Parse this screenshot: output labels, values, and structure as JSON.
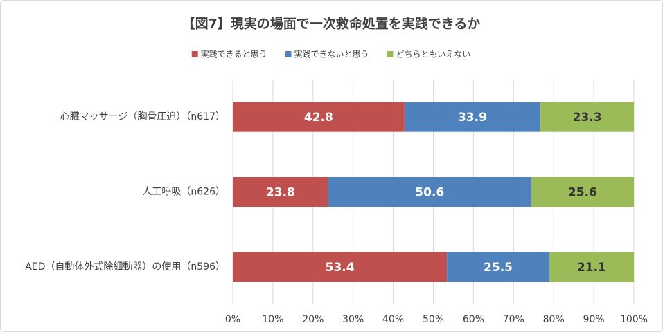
{
  "chart_data": {
    "type": "stacked-bar-horizontal",
    "title": "【図7】現実の場面で一次救命処置を実践できるか",
    "categories": [
      "心臓マッサージ（胸骨圧迫）（n617）",
      "人工呼吸（n626）",
      "AED（自動体外式除細動器）の使用（n596）"
    ],
    "series": [
      {
        "name": "実践できると思う",
        "color": "#c0504d",
        "label_color": "#ffffff",
        "values": [
          42.8,
          23.8,
          53.4
        ]
      },
      {
        "name": "実践できないと思う",
        "color": "#4f81bd",
        "label_color": "#ffffff",
        "values": [
          33.9,
          50.6,
          25.5
        ]
      },
      {
        "name": "どちらともいえない",
        "color": "#9bbb59",
        "label_color": "#333333",
        "values": [
          23.3,
          25.6,
          21.1
        ]
      }
    ],
    "xlim": [
      0,
      100
    ],
    "xticks": [
      {
        "value": 0,
        "label": "0%"
      },
      {
        "value": 10,
        "label": "10%"
      },
      {
        "value": 20,
        "label": "20%"
      },
      {
        "value": 30,
        "label": "30%"
      },
      {
        "value": 40,
        "label": "40%"
      },
      {
        "value": 50,
        "label": "50%"
      },
      {
        "value": 60,
        "label": "60%"
      },
      {
        "value": 70,
        "label": "70%"
      },
      {
        "value": 80,
        "label": "80%"
      },
      {
        "value": 90,
        "label": "90%"
      },
      {
        "value": 100,
        "label": "100%"
      }
    ],
    "grid": true,
    "legend": "top"
  }
}
